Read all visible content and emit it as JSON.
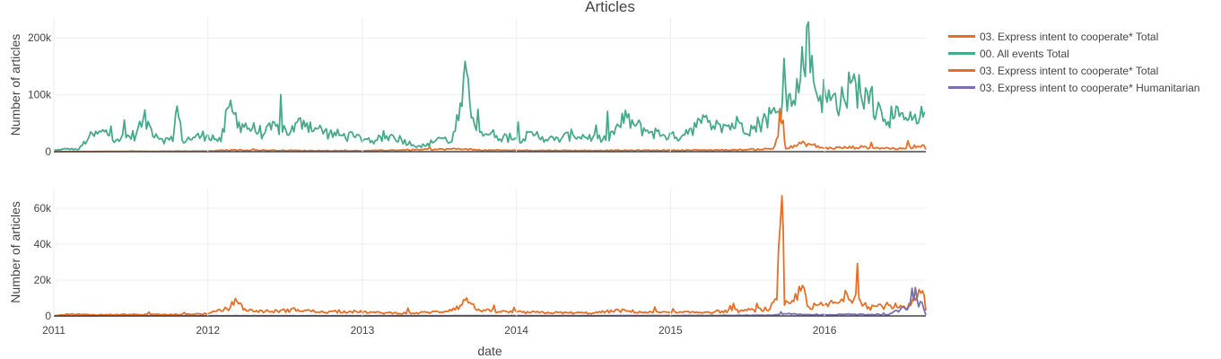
{
  "chart_data": {
    "type": "line",
    "title": "Articles",
    "xlabel": "date",
    "x_ticks": [
      "2011",
      "2012",
      "2013",
      "2014",
      "2015",
      "2016"
    ],
    "x_range": [
      "2011-01-01",
      "2016-08-28"
    ],
    "grid": true,
    "legend_position": "right",
    "legend": [
      {
        "name": "03. Express intent to cooperate*  Total",
        "color": "#e66f25"
      },
      {
        "name": "00. All events Total",
        "color": "#46a98b"
      },
      {
        "name": "03. Express intent to cooperate*  Total",
        "color": "#e66f25"
      },
      {
        "name": "03. Express intent to cooperate* Humanitarian",
        "color": "#7b6fb0"
      }
    ],
    "panels": [
      {
        "ylabel": "Number of articles",
        "ylim": [
          0,
          235000
        ],
        "y_ticks": [
          0,
          100000,
          200000
        ],
        "y_tick_labels": [
          "0",
          "100k",
          "200k"
        ],
        "series": [
          {
            "name": "00. All events Total",
            "color": "#46a98b",
            "points": [
              [
                "2011-01-01",
                2000
              ],
              [
                "2011-02-01",
                5000
              ],
              [
                "2011-03-01",
                4000
              ],
              [
                "2011-03-25",
                25000
              ],
              [
                "2011-05-01",
                35000
              ],
              [
                "2011-06-01",
                22000
              ],
              [
                "2011-07-15",
                30000
              ],
              [
                "2011-08-01",
                58000
              ],
              [
                "2011-08-20",
                40000
              ],
              [
                "2011-09-15",
                22000
              ],
              [
                "2011-10-10",
                18000
              ],
              [
                "2011-10-20",
                80000
              ],
              [
                "2011-11-01",
                20000
              ],
              [
                "2011-12-01",
                25000
              ],
              [
                "2012-01-01",
                30000
              ],
              [
                "2012-02-01",
                18000
              ],
              [
                "2012-02-20",
                78000
              ],
              [
                "2012-03-15",
                52000
              ],
              [
                "2012-04-15",
                40000
              ],
              [
                "2012-05-15",
                32000
              ],
              [
                "2012-06-10",
                45000
              ],
              [
                "2012-07-15",
                35000
              ],
              [
                "2012-08-15",
                55000
              ],
              [
                "2012-09-15",
                40000
              ],
              [
                "2012-10-15",
                32000
              ],
              [
                "2012-11-15",
                28000
              ],
              [
                "2012-12-15",
                25000
              ],
              [
                "2013-02-01",
                20000
              ],
              [
                "2013-03-15",
                28000
              ],
              [
                "2013-05-01",
                12000
              ],
              [
                "2013-06-01",
                10000
              ],
              [
                "2013-07-01",
                25000
              ],
              [
                "2013-08-01",
                18000
              ],
              [
                "2013-08-25",
                80000
              ],
              [
                "2013-09-05",
                140000
              ],
              [
                "2013-09-20",
                60000
              ],
              [
                "2013-10-10",
                35000
              ],
              [
                "2013-11-15",
                28000
              ],
              [
                "2014-01-01",
                22000
              ],
              [
                "2014-02-15",
                30000
              ],
              [
                "2014-04-01",
                20000
              ],
              [
                "2014-05-15",
                30000
              ],
              [
                "2014-07-01",
                25000
              ],
              [
                "2014-08-01",
                20000
              ],
              [
                "2014-09-01",
                45000
              ],
              [
                "2014-09-20",
                60000
              ],
              [
                "2014-10-10",
                45000
              ],
              [
                "2014-11-15",
                35000
              ],
              [
                "2014-12-15",
                30000
              ],
              [
                "2015-01-15",
                25000
              ],
              [
                "2015-02-15",
                40000
              ],
              [
                "2015-03-15",
                50000
              ],
              [
                "2015-04-20",
                55000
              ],
              [
                "2015-05-15",
                45000
              ],
              [
                "2015-06-15",
                50000
              ],
              [
                "2015-07-15",
                40000
              ],
              [
                "2015-08-15",
                60000
              ],
              [
                "2015-09-15",
                70000
              ],
              [
                "2015-10-01",
                110000
              ],
              [
                "2015-10-15",
                80000
              ],
              [
                "2015-11-05",
                130000
              ],
              [
                "2015-11-20",
                220000
              ],
              [
                "2015-12-10",
                110000
              ],
              [
                "2016-01-15",
                90000
              ],
              [
                "2016-02-15",
                95000
              ],
              [
                "2016-03-15",
                120000
              ],
              [
                "2016-04-15",
                85000
              ],
              [
                "2016-05-15",
                70000
              ],
              [
                "2016-06-15",
                60000
              ],
              [
                "2016-07-15",
                55000
              ],
              [
                "2016-08-10",
                50000
              ],
              [
                "2016-08-25",
                70000
              ]
            ]
          },
          {
            "name": "03. Express intent to cooperate*  Total",
            "color": "#e66f25",
            "points": [
              [
                "2011-01-01",
                0
              ],
              [
                "2011-06-01",
                500
              ],
              [
                "2012-01-01",
                1000
              ],
              [
                "2012-03-01",
                3000
              ],
              [
                "2012-08-01",
                2000
              ],
              [
                "2013-01-01",
                1500
              ],
              [
                "2013-09-01",
                5000
              ],
              [
                "2013-10-01",
                2500
              ],
              [
                "2014-06-01",
                2000
              ],
              [
                "2015-01-01",
                2500
              ],
              [
                "2015-06-01",
                3000
              ],
              [
                "2015-09-01",
                5000
              ],
              [
                "2015-09-25",
                55000
              ],
              [
                "2015-10-01",
                5000
              ],
              [
                "2015-11-15",
                15000
              ],
              [
                "2016-01-01",
                6000
              ],
              [
                "2016-04-01",
                8000
              ],
              [
                "2016-07-01",
                5000
              ],
              [
                "2016-08-20",
                12000
              ],
              [
                "2016-08-28",
                4000
              ]
            ]
          }
        ]
      },
      {
        "ylabel": "Number of articles",
        "ylim": [
          0,
          71000
        ],
        "y_ticks": [
          0,
          20000,
          40000,
          60000
        ],
        "y_tick_labels": [
          "0",
          "20k",
          "40k",
          "60k"
        ],
        "series": [
          {
            "name": "03. Express intent to cooperate*  Total",
            "color": "#e66f25",
            "points": [
              [
                "2011-01-01",
                200
              ],
              [
                "2011-02-10",
                1000
              ],
              [
                "2011-04-01",
                600
              ],
              [
                "2011-07-01",
                800
              ],
              [
                "2011-10-01",
                700
              ],
              [
                "2012-01-01",
                1200
              ],
              [
                "2012-02-15",
                4000
              ],
              [
                "2012-03-10",
                8000
              ],
              [
                "2012-04-01",
                3000
              ],
              [
                "2012-06-01",
                2500
              ],
              [
                "2012-08-01",
                3500
              ],
              [
                "2012-10-01",
                2000
              ],
              [
                "2012-12-01",
                2500
              ],
              [
                "2013-02-01",
                1800
              ],
              [
                "2013-05-01",
                1500
              ],
              [
                "2013-07-15",
                2500
              ],
              [
                "2013-08-25",
                6000
              ],
              [
                "2013-09-05",
                10000
              ],
              [
                "2013-09-25",
                4000
              ],
              [
                "2013-11-01",
                2500
              ],
              [
                "2014-01-15",
                2000
              ],
              [
                "2014-04-01",
                1800
              ],
              [
                "2014-07-01",
                1600
              ],
              [
                "2014-09-01",
                3000
              ],
              [
                "2014-11-01",
                2000
              ],
              [
                "2015-01-15",
                1800
              ],
              [
                "2015-04-01",
                2200
              ],
              [
                "2015-07-01",
                3000
              ],
              [
                "2015-08-25",
                4000
              ],
              [
                "2015-09-10",
                9000
              ],
              [
                "2015-09-22",
                67000
              ],
              [
                "2015-09-28",
                6000
              ],
              [
                "2015-10-20",
                8000
              ],
              [
                "2015-11-10",
                17000
              ],
              [
                "2015-11-25",
                5000
              ],
              [
                "2016-01-01",
                6000
              ],
              [
                "2016-02-15",
                8000
              ],
              [
                "2016-03-15",
                12000
              ],
              [
                "2016-04-15",
                5000
              ],
              [
                "2016-06-01",
                6000
              ],
              [
                "2016-07-15",
                4000
              ],
              [
                "2016-08-20",
                14000
              ],
              [
                "2016-08-28",
                3000
              ]
            ]
          },
          {
            "name": "03. Express intent to cooperate* Humanitarian",
            "color": "#7b6fb0",
            "points": [
              [
                "2011-01-01",
                0
              ],
              [
                "2012-01-01",
                100
              ],
              [
                "2013-01-01",
                100
              ],
              [
                "2014-01-01",
                150
              ],
              [
                "2015-01-01",
                200
              ],
              [
                "2015-09-01",
                400
              ],
              [
                "2015-10-01",
                1200
              ],
              [
                "2015-12-01",
                600
              ],
              [
                "2016-03-01",
                900
              ],
              [
                "2016-06-01",
                700
              ],
              [
                "2016-08-15",
                8000
              ],
              [
                "2016-08-28",
                600
              ]
            ]
          }
        ]
      }
    ]
  }
}
